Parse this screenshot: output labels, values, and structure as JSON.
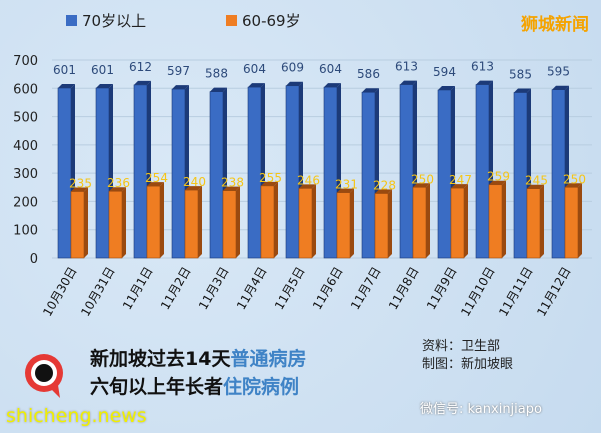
{
  "brand": "狮城新闻",
  "chart_data": {
    "type": "bar",
    "categories": [
      "10月30日",
      "10月31日",
      "11月1日",
      "11月2日",
      "11月3日",
      "11月4日",
      "11月5日",
      "11月6日",
      "11月7日",
      "11月8日",
      "11月9日",
      "11月10日",
      "11月11日",
      "11月12日"
    ],
    "series": [
      {
        "name": "70岁以上",
        "color": "#3a6cc4",
        "values": [
          601,
          601,
          612,
          597,
          588,
          604,
          609,
          604,
          586,
          613,
          594,
          613,
          585,
          595
        ]
      },
      {
        "name": "60-69岁",
        "color": "#ef7d22",
        "values": [
          235,
          236,
          254,
          240,
          238,
          255,
          246,
          231,
          228,
          250,
          247,
          259,
          245,
          250
        ]
      }
    ],
    "yticks": [
      0,
      100,
      200,
      300,
      400,
      500,
      600,
      700
    ],
    "ylim": [
      0,
      700
    ],
    "grid": true,
    "legend": "top-left"
  },
  "title": {
    "line1_a": "新加坡过去14天",
    "line1_b": "普通病房",
    "line2_a": "六旬以上年长者",
    "line2_b": "住院病例"
  },
  "source": {
    "line1": "资料：卫生部",
    "line2": "制图：新加坡眼"
  },
  "wechat": "微信号: kanxinjiapo",
  "site": "shicheng.news",
  "logo_text": "新加坡眼"
}
